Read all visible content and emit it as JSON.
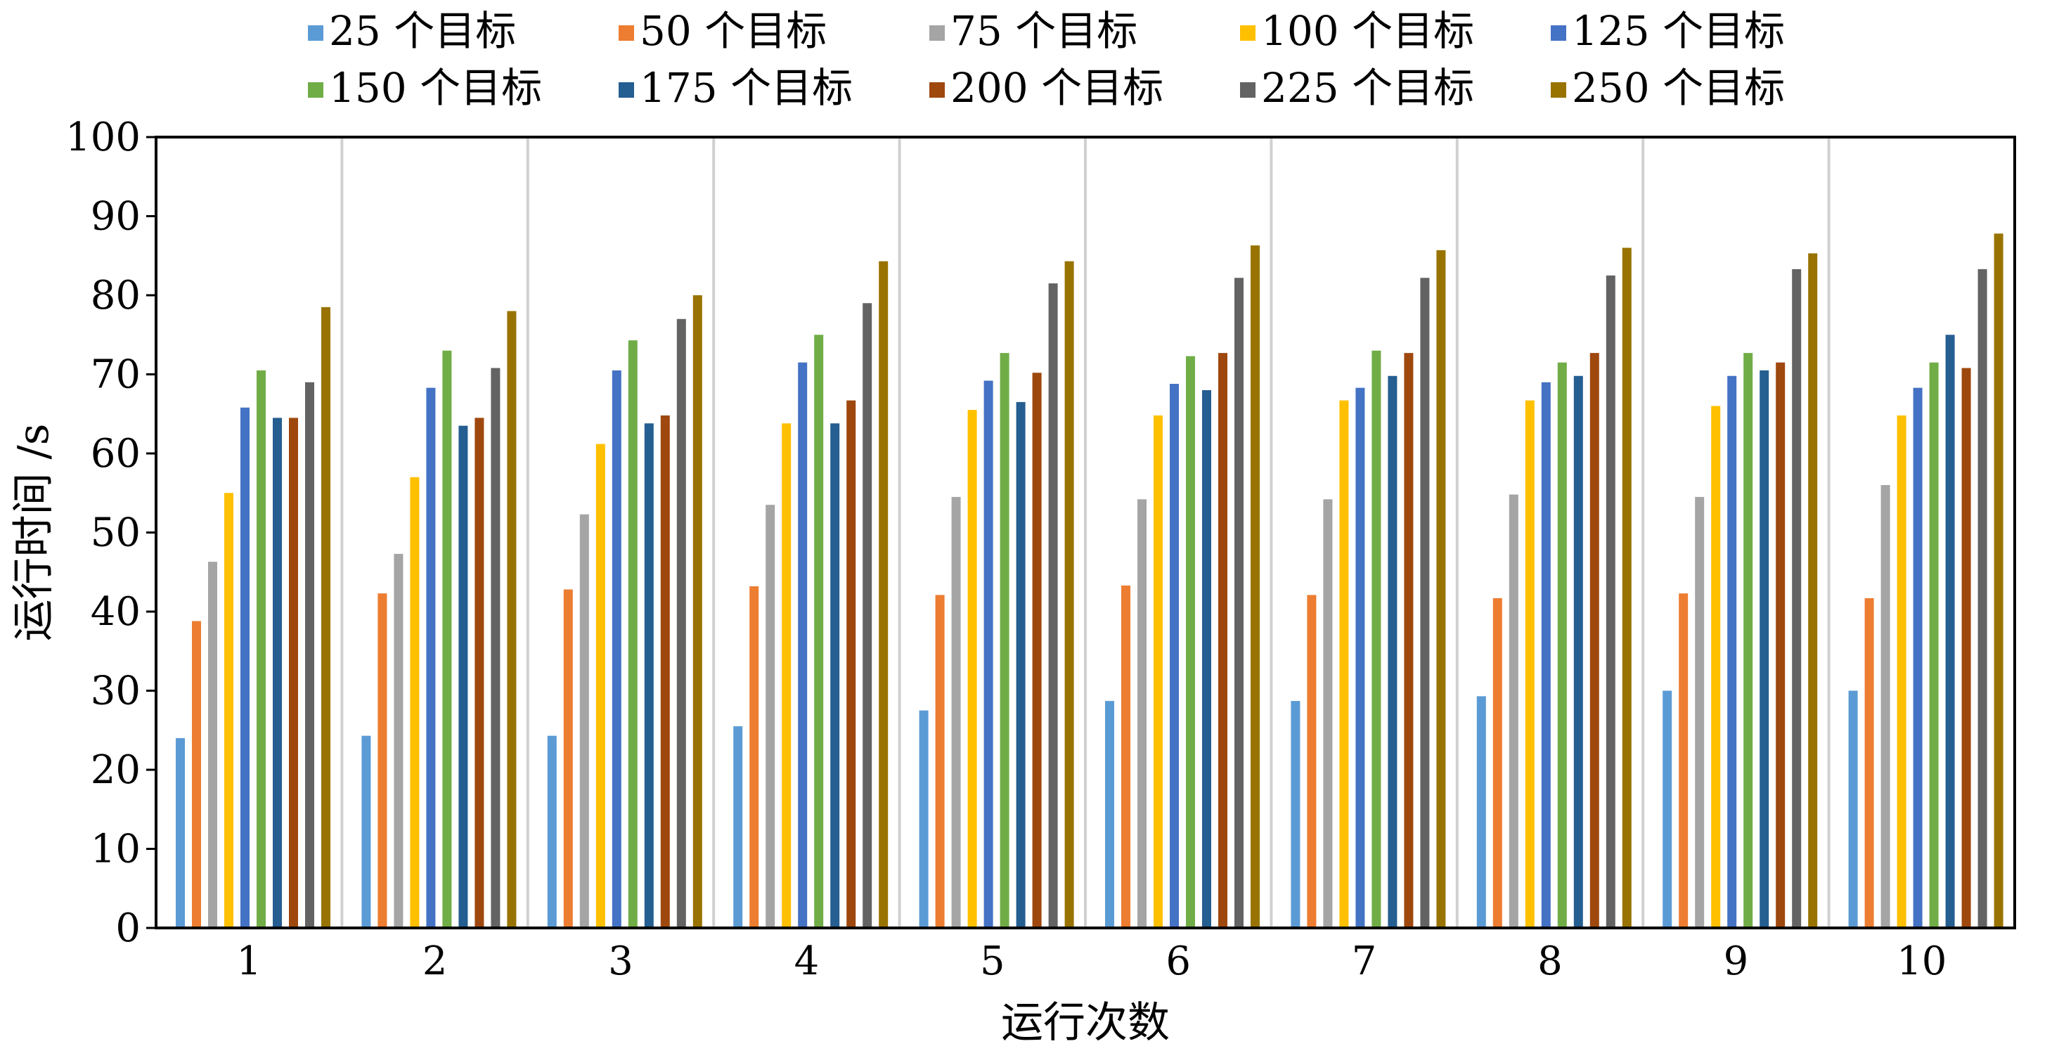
{
  "chart_data": {
    "type": "bar",
    "title": "",
    "xlabel": "运行次数",
    "ylabel": "运行时间 /s",
    "ylim": [
      0,
      100
    ],
    "yticks": [
      0,
      10,
      20,
      30,
      40,
      50,
      60,
      70,
      80,
      90,
      100
    ],
    "grid": "vertical separators between groups",
    "legend_position": "top",
    "categories": [
      "1",
      "2",
      "3",
      "4",
      "5",
      "6",
      "7",
      "8",
      "9",
      "10"
    ],
    "series": [
      {
        "name": "25 个目标",
        "color": "#5B9BD5",
        "values": [
          24.0,
          24.3,
          24.3,
          25.5,
          27.5,
          28.7,
          28.7,
          29.3,
          30.0,
          30.0
        ]
      },
      {
        "name": "50 个目标",
        "color": "#ED7D31",
        "values": [
          38.8,
          42.3,
          42.8,
          43.2,
          42.1,
          43.3,
          42.1,
          41.7,
          42.3,
          41.7
        ]
      },
      {
        "name": "75 个目标",
        "color": "#A5A5A5",
        "values": [
          46.3,
          47.3,
          52.3,
          53.5,
          54.5,
          54.2,
          54.2,
          54.8,
          54.5,
          56.0
        ]
      },
      {
        "name": "100 个目标",
        "color": "#FFC000",
        "values": [
          55.0,
          57.0,
          61.2,
          63.8,
          65.5,
          64.8,
          66.7,
          66.7,
          66.0,
          64.8
        ]
      },
      {
        "name": "125 个目标",
        "color": "#4472C4",
        "values": [
          65.8,
          68.3,
          70.5,
          71.5,
          69.2,
          68.8,
          68.3,
          69.0,
          69.8,
          68.3
        ]
      },
      {
        "name": "150 个目标",
        "color": "#70AD47",
        "values": [
          70.5,
          73.0,
          74.3,
          75.0,
          72.7,
          72.3,
          73.0,
          71.5,
          72.7,
          71.5
        ]
      },
      {
        "name": "175 个目标",
        "color": "#255E91",
        "values": [
          64.5,
          63.5,
          63.8,
          63.8,
          66.5,
          68.0,
          69.8,
          69.8,
          70.5,
          75.0
        ]
      },
      {
        "name": "200 个目标",
        "color": "#9E480E",
        "values": [
          64.5,
          64.5,
          64.8,
          66.7,
          70.2,
          72.7,
          72.7,
          72.7,
          71.5,
          70.8
        ]
      },
      {
        "name": "225 个目标",
        "color": "#636363",
        "values": [
          69.0,
          70.8,
          77.0,
          79.0,
          81.5,
          82.2,
          82.2,
          82.5,
          83.3,
          83.3
        ]
      },
      {
        "name": "250 个目标",
        "color": "#997300",
        "values": [
          78.5,
          78.0,
          80.0,
          84.3,
          84.3,
          86.3,
          85.7,
          86.0,
          85.3,
          87.8
        ]
      }
    ]
  }
}
